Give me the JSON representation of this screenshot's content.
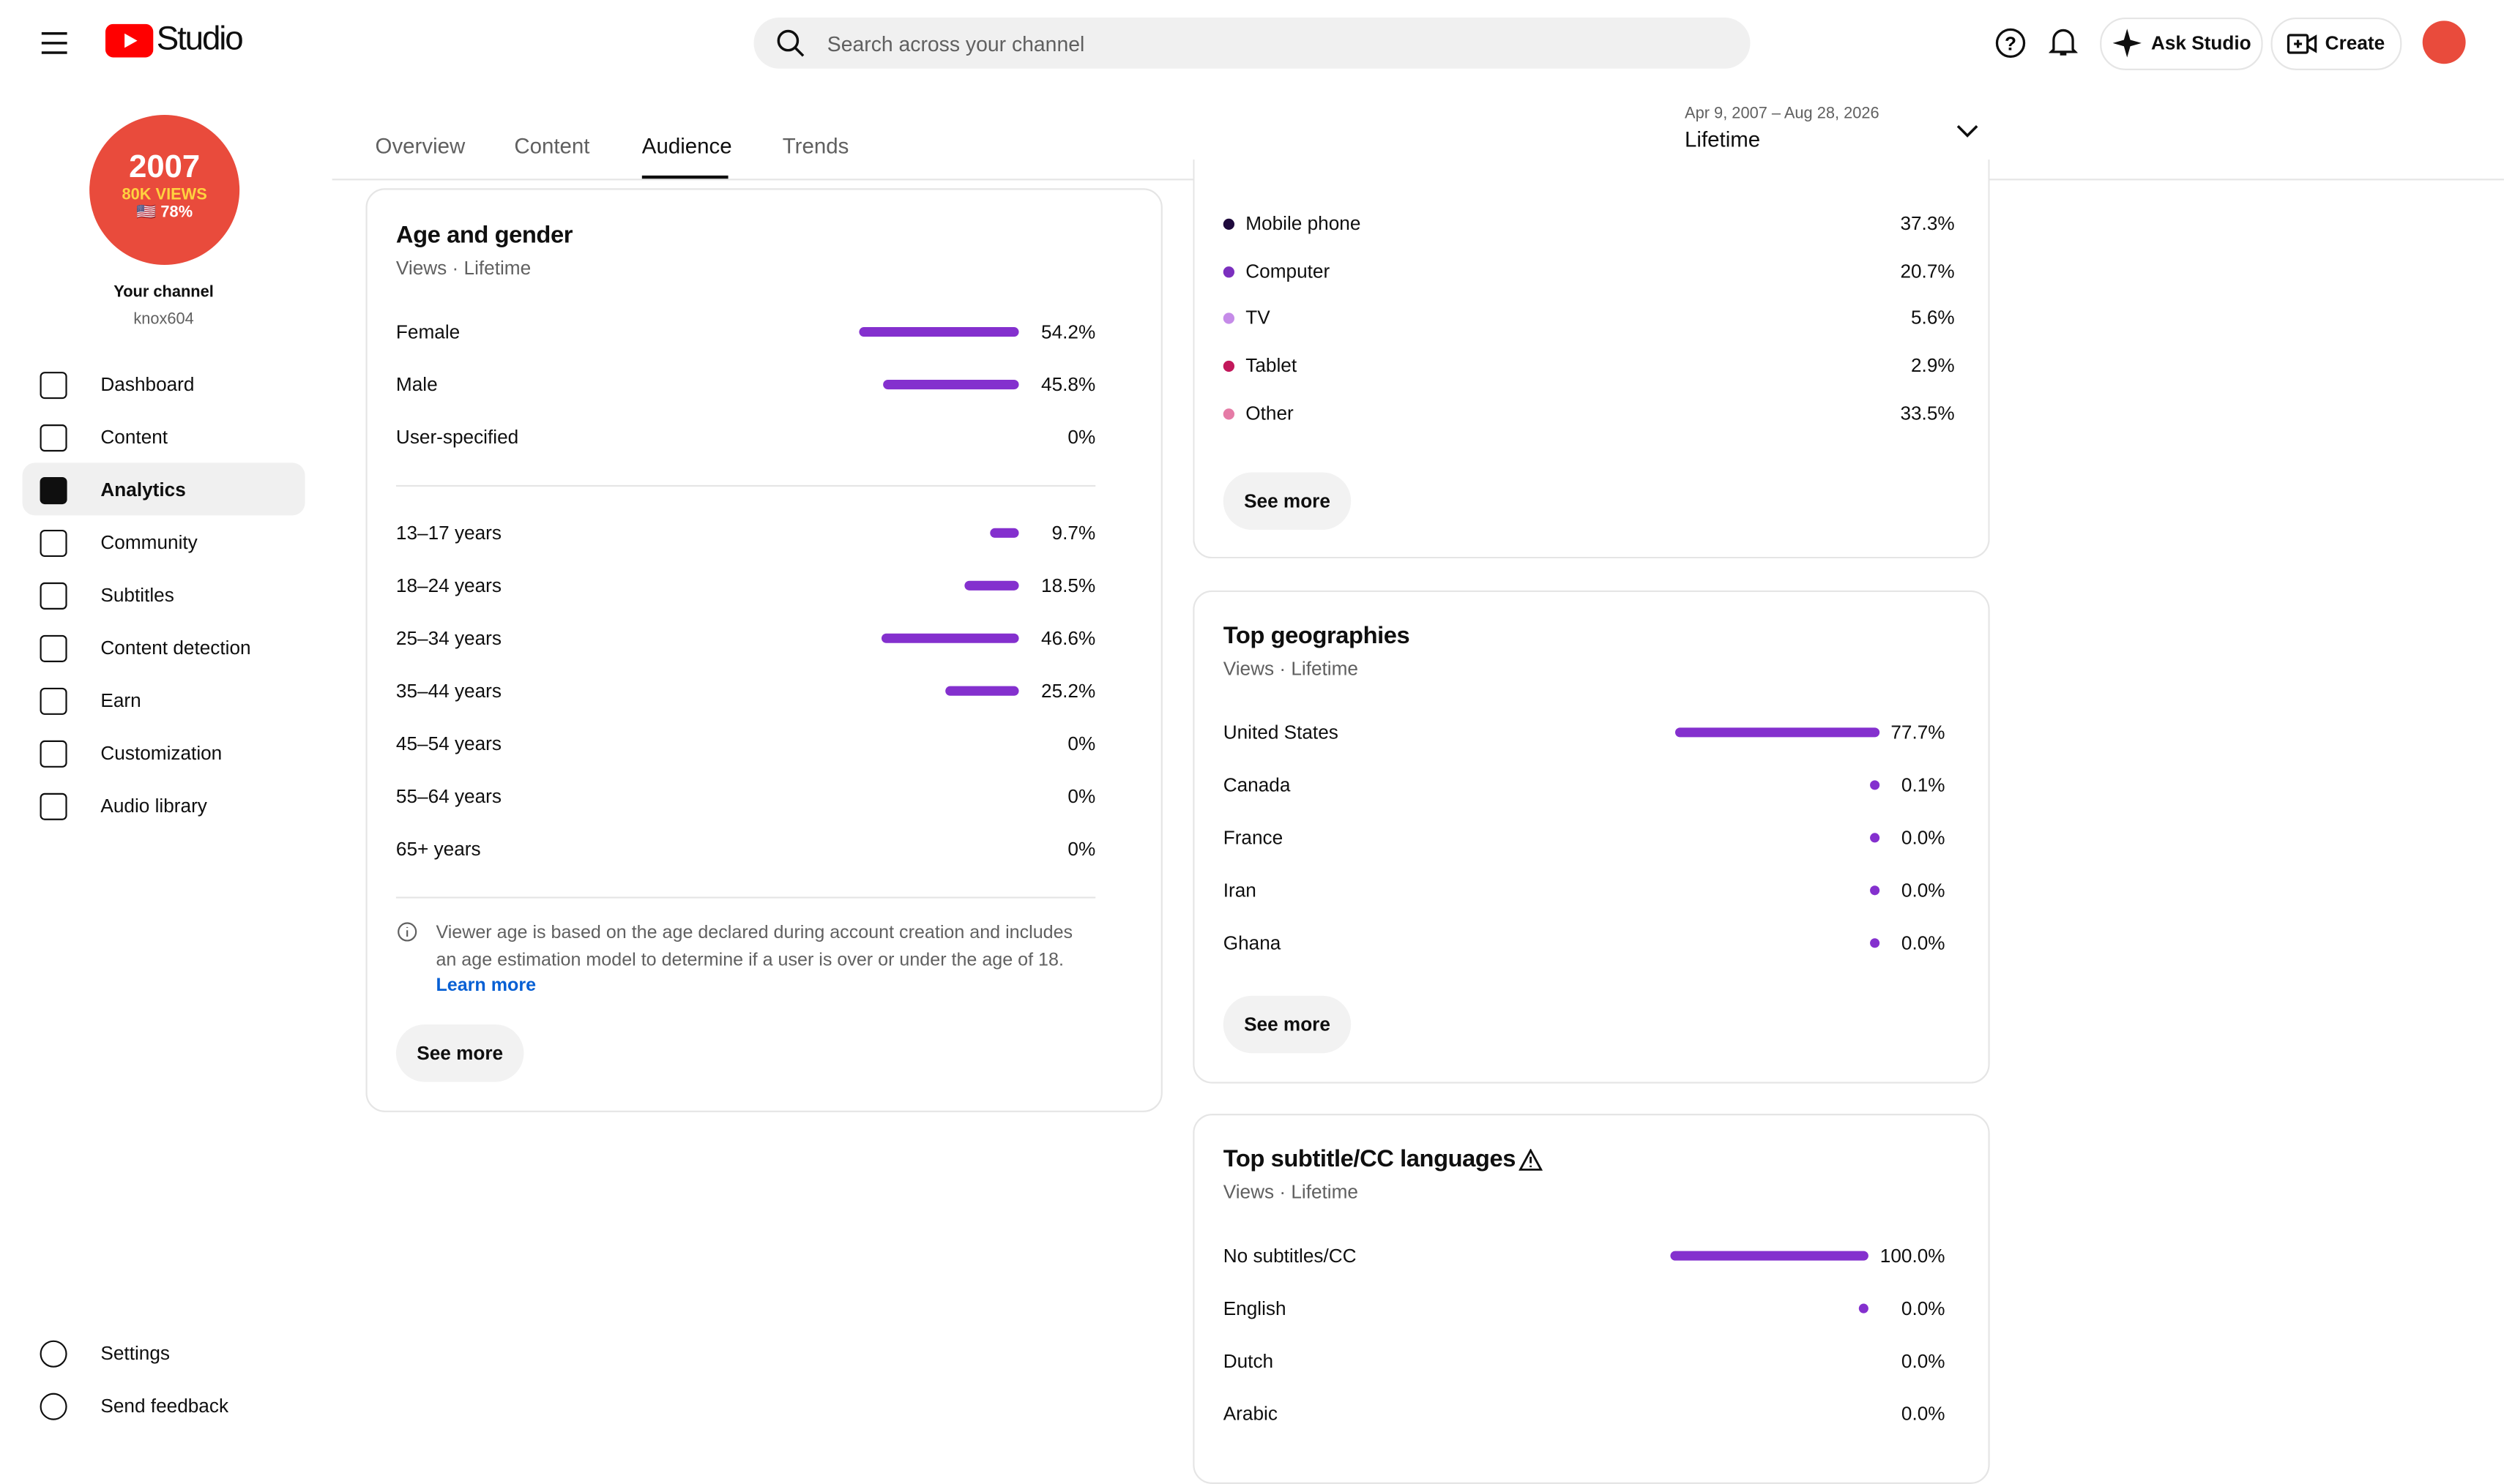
{
  "header": {
    "logo": "Studio",
    "search_placeholder": "Search across your channel",
    "ask": "Ask Studio",
    "create": "Create"
  },
  "channel": {
    "avatar_lines": [
      "2007",
      "80K VIEWS",
      "🇺🇸 78%"
    ],
    "title": "Your channel",
    "handle": "knox604"
  },
  "nav": [
    "Dashboard",
    "Content",
    "Analytics",
    "Community",
    "Subtitles",
    "Content detection",
    "Earn",
    "Customization",
    "Audio library"
  ],
  "nav_active": 2,
  "nav_bottom": [
    "Settings",
    "Send feedback"
  ],
  "tabs": [
    "Overview",
    "Content",
    "Audience",
    "Trends"
  ],
  "tab_active": 2,
  "date_range": {
    "range": "Apr 9, 2007 – Aug 28, 2026",
    "label": "Lifetime"
  },
  "age_gender": {
    "title": "Age and gender",
    "subtitle": "Views · Lifetime",
    "gender": [
      {
        "label": "Female",
        "value": 54.2,
        "value_label": "54.2%"
      },
      {
        "label": "Male",
        "value": 45.8,
        "value_label": "45.8%"
      },
      {
        "label": "User-specified",
        "value": 0,
        "value_label": "0%",
        "bar": false
      }
    ],
    "age": [
      {
        "label": "13–17 years",
        "value": 9.7,
        "value_label": "9.7%"
      },
      {
        "label": "18–24 years",
        "value": 18.5,
        "value_label": "18.5%"
      },
      {
        "label": "25–34 years",
        "value": 46.6,
        "value_label": "46.6%"
      },
      {
        "label": "35–44 years",
        "value": 25.2,
        "value_label": "25.2%"
      },
      {
        "label": "45–54 years",
        "value": 0,
        "value_label": "0%",
        "bar": false
      },
      {
        "label": "55–64 years",
        "value": 0,
        "value_label": "0%",
        "bar": false
      },
      {
        "label": "65+ years",
        "value": 0,
        "value_label": "0%",
        "bar": false
      }
    ],
    "note": "Viewer age is based on the age declared during account creation and includes an age estimation model to determine if a user is over or under the age of 18.",
    "link": "Learn more",
    "button": "See more"
  },
  "devices": {
    "items": [
      {
        "label": "Mobile phone",
        "value": 37.3,
        "value_label": "37.3%",
        "color": "#1f0a3d"
      },
      {
        "label": "Computer",
        "value": 20.7,
        "value_label": "20.7%",
        "color": "#7b2fbe"
      },
      {
        "label": "TV",
        "value": 5.6,
        "value_label": "5.6%",
        "color": "#c58be8"
      },
      {
        "label": "Tablet",
        "value": 2.9,
        "value_label": "2.9%",
        "color": "#c2185b"
      },
      {
        "label": "Other",
        "value": 33.5,
        "value_label": "33.5%",
        "color": "#e57ba6"
      }
    ],
    "button": "See more"
  },
  "geographies": {
    "title": "Top geographies",
    "subtitle": "Views · Lifetime",
    "items": [
      {
        "label": "United States",
        "value": 77.7,
        "value_label": "77.7%"
      },
      {
        "label": "Canada",
        "value": 0.1,
        "value_label": "0.1%"
      },
      {
        "label": "France",
        "value": 0.0,
        "value_label": "0.0%"
      },
      {
        "label": "Iran",
        "value": 0.0,
        "value_label": "0.0%"
      },
      {
        "label": "Ghana",
        "value": 0.0,
        "value_label": "0.0%"
      }
    ],
    "button": "See more"
  },
  "subtitles": {
    "title": "Top subtitle/CC languages",
    "subtitle": "Views · Lifetime",
    "items": [
      {
        "label": "No subtitles/CC",
        "value": 100.0,
        "value_label": "100.0%"
      },
      {
        "label": "English",
        "value": 0.0,
        "value_label": "0.0%"
      },
      {
        "label": "Dutch",
        "value": 0.0,
        "value_label": "0.0%",
        "bar": false
      },
      {
        "label": "Arabic",
        "value": 0.0,
        "value_label": "0.0%",
        "bar": false
      }
    ]
  }
}
